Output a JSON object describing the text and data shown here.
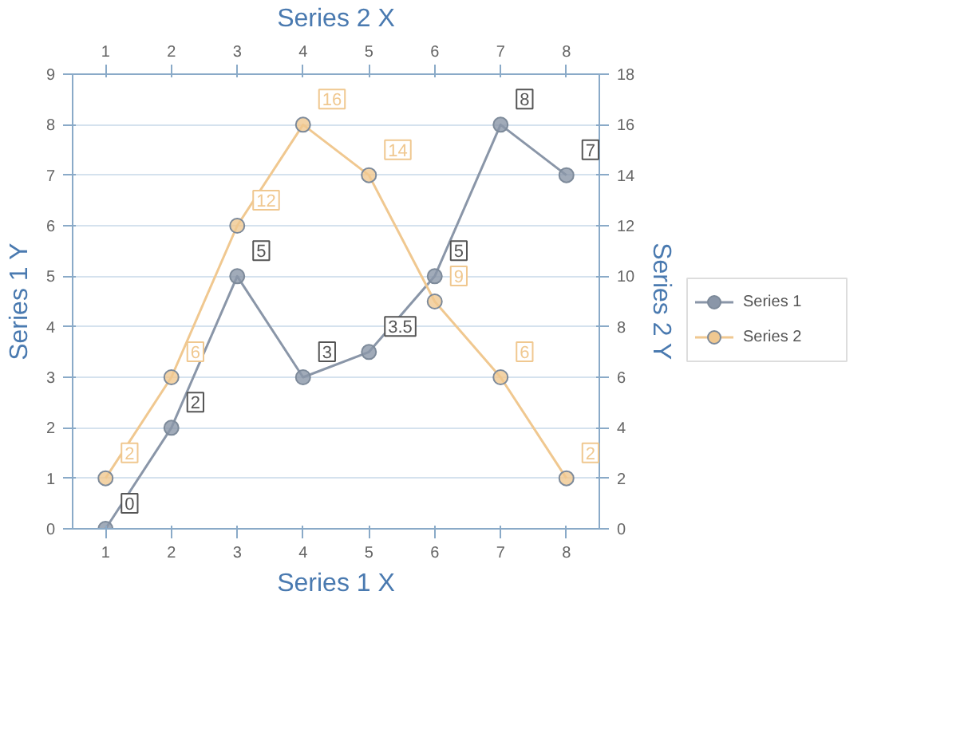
{
  "chart_data": {
    "type": "line",
    "x2label": "Series 2 X",
    "xlabel": "Series 1 X",
    "ylabel": "Series 1 Y",
    "y2label": "Series 2 Y",
    "x": [
      1,
      2,
      3,
      4,
      5,
      6,
      7,
      8
    ],
    "series": [
      {
        "name": "Series 1",
        "color": "#8a96a8",
        "values": [
          0,
          2,
          5,
          3,
          3.5,
          5,
          8,
          7
        ]
      },
      {
        "name": "Series 2",
        "color": "#f0c890",
        "axis": "y2",
        "values": [
          2,
          6,
          12,
          16,
          14,
          9,
          6,
          2
        ]
      }
    ],
    "xlim": [
      0.5,
      8.5
    ],
    "xticks": [
      1,
      2,
      3,
      4,
      5,
      6,
      7,
      8
    ],
    "x2lim": [
      0.5,
      8.5
    ],
    "x2ticks": [
      1,
      2,
      3,
      4,
      5,
      6,
      7,
      8
    ],
    "ylim": [
      0,
      9
    ],
    "yticks": [
      0,
      1,
      2,
      3,
      4,
      5,
      6,
      7,
      8,
      9
    ],
    "y2lim": [
      0,
      18
    ],
    "y2ticks": [
      0,
      2,
      4,
      6,
      8,
      10,
      12,
      14,
      16,
      18
    ],
    "data_labels": true,
    "marker": "circle",
    "grid": "y",
    "legend": "right"
  }
}
